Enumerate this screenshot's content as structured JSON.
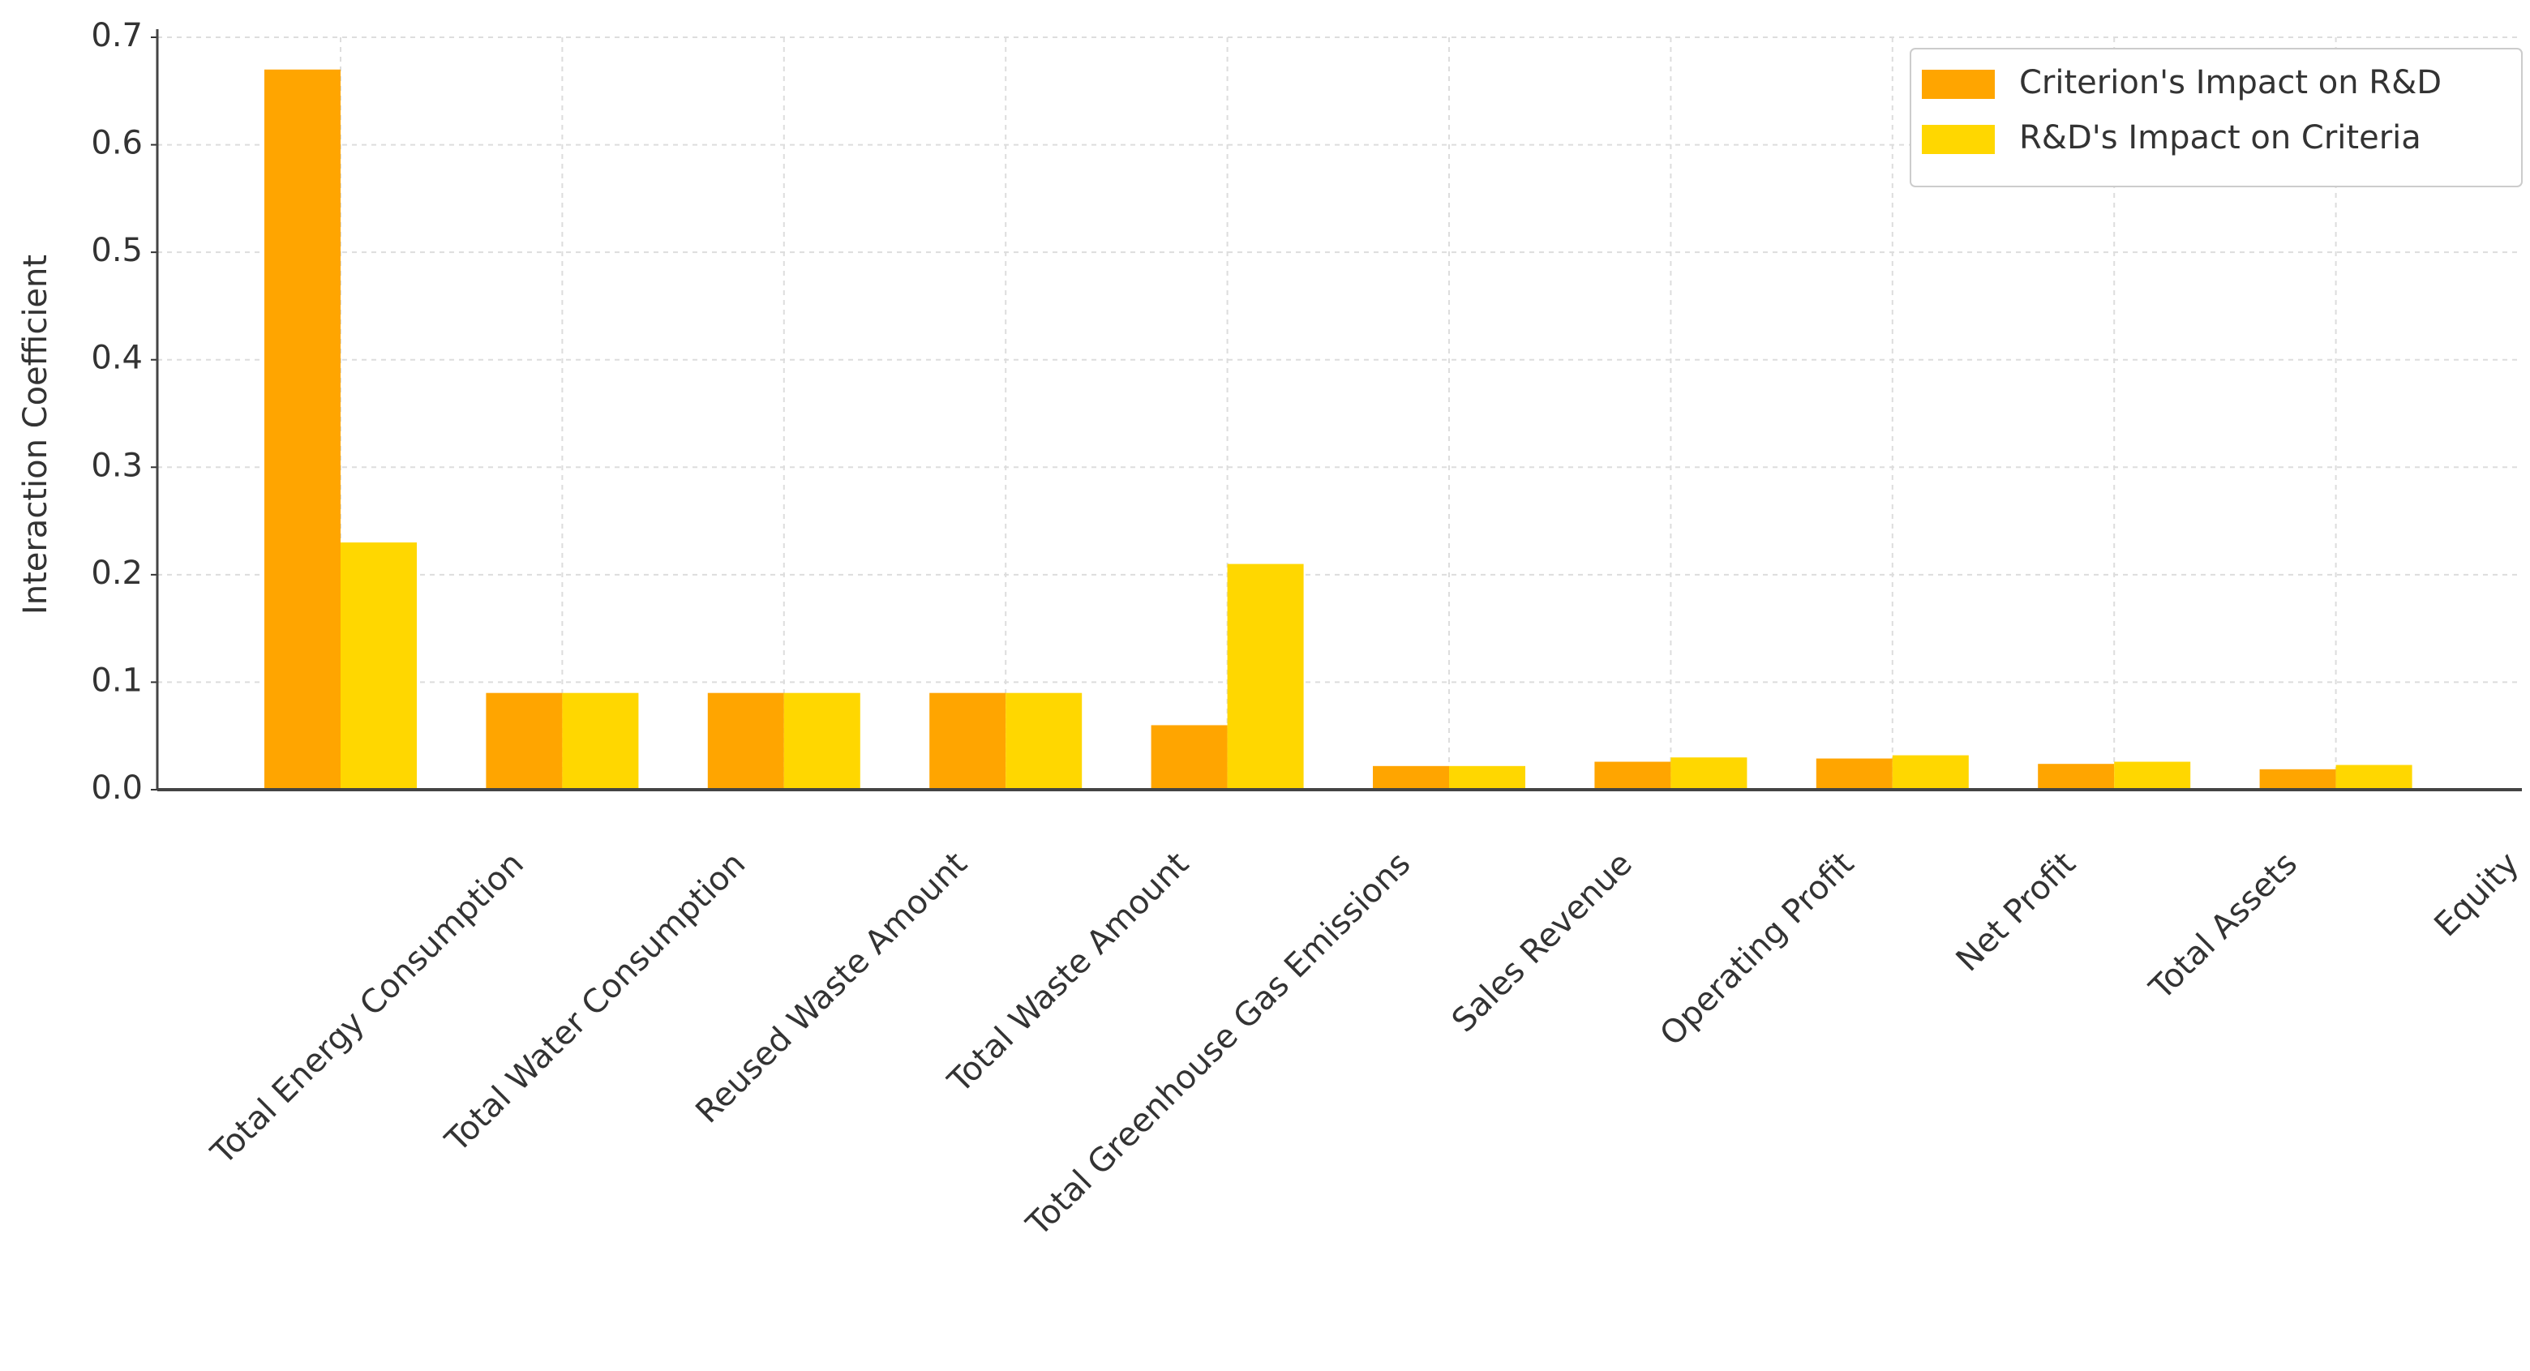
{
  "chart_data": {
    "type": "bar",
    "ylabel": "Interaction Coefficient",
    "categories": [
      "Total Energy Consumption",
      "Total Water Consumption",
      "Reused Waste Amount",
      "Total Waste Amount",
      "Total Greenhouse Gas Emissions",
      "Sales Revenue",
      "Operating Profit",
      "Net Profit",
      "Total Assets",
      "Equity"
    ],
    "series": [
      {
        "name": "Criterion's Impact on R&D",
        "color": "#FFA500",
        "values": [
          0.67,
          0.09,
          0.09,
          0.09,
          0.06,
          0.022,
          0.026,
          0.029,
          0.024,
          0.019
        ]
      },
      {
        "name": "R&D's Impact on Criteria",
        "color": "#FFD700",
        "values": [
          0.23,
          0.09,
          0.09,
          0.09,
          0.21,
          0.022,
          0.03,
          0.032,
          0.026,
          0.023
        ]
      }
    ],
    "ylim": [
      0,
      0.7
    ],
    "yticks": [
      {
        "value": 0,
        "label": "0.0"
      },
      0.1,
      0.2,
      0.3,
      0.4,
      0.5,
      0.6,
      0.7
    ],
    "grid": true,
    "legend": "upper right"
  }
}
